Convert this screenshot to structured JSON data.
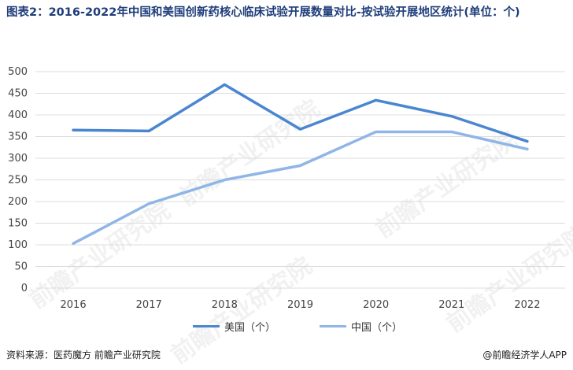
{
  "title": "图表2：2016-2022年中国和美国创新药核心临床试验开展数量对比-按试验开展地区统计(单位：个)",
  "source": "资料来源：医药魔方 前瞻产业研究院",
  "brand": "@前瞻经济学人APP",
  "watermark": "前瞻产业研究院",
  "colors": {
    "usa": "#4a86d0",
    "china": "#8fb6e6",
    "grid": "#dcdcdc",
    "axis_text": "#444444"
  },
  "chart_data": {
    "type": "line",
    "title": "图表2：2016-2022年中国和美国创新药核心临床试验开展数量对比-按试验开展地区统计(单位：个)",
    "x": [
      "2016",
      "2017",
      "2018",
      "2019",
      "2020",
      "2021",
      "2022"
    ],
    "ylim": [
      0,
      500
    ],
    "yticks": [
      0,
      50,
      100,
      150,
      200,
      250,
      300,
      350,
      400,
      450,
      500
    ],
    "grid": true,
    "legend": "bottom",
    "series": [
      {
        "name": "美国（个）",
        "values": [
          365,
          363,
          470,
          367,
          434,
          397,
          339
        ]
      },
      {
        "name": "中国（个）",
        "values": [
          103,
          195,
          250,
          283,
          361,
          361,
          321
        ]
      }
    ]
  }
}
